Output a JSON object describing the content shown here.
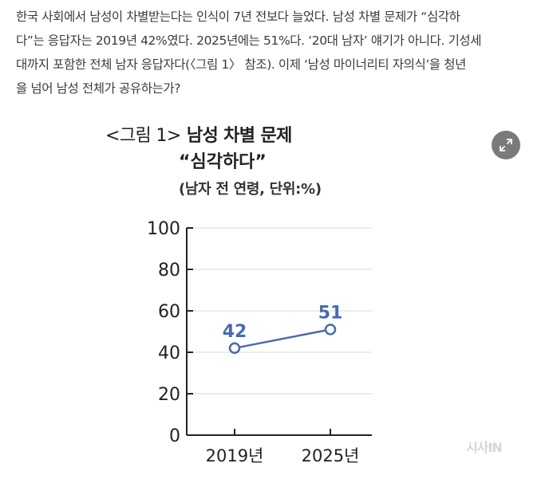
{
  "article": {
    "lines": [
      "한국 사회에서 남성이 차별받는다는 인식이 7년 전보다 늘었다. 남성 차별 문제가 “심각하",
      "다”는 응답자는 2019년 42%였다. 2025년에는 51%다. ‘20대 남자’ 얘기가 아니다. 기성세",
      "대까지 포함한 전체 남자 응답자다(〈그림 1〉 참조). 이제 ‘남성 마이너리티 자의식’을 청년",
      "을 넘어 남성 전체가 공유하는가?"
    ]
  },
  "figure": {
    "label": "<그림 1>",
    "title_line1": "남성 차별 문제",
    "title_line2": "“심각하다”",
    "subtitle": "(남자 전 연령, 단위:%)",
    "expand_icon": "expand-icon"
  },
  "watermark": "시사IN",
  "colors": {
    "series": "#4a6aad",
    "axis": "#222222",
    "grid": "#d9d9d9",
    "expand_button": "#7a7a7a"
  },
  "chart_data": {
    "type": "line",
    "title": "남성 차별 문제 “심각하다”",
    "subtitle": "(남자 전 연령, 단위:%)",
    "categories": [
      "2019년",
      "2025년"
    ],
    "series": [
      {
        "values": [
          42,
          51
        ]
      }
    ],
    "data_labels": [
      "42",
      "51"
    ],
    "y_ticks": [
      "0",
      "20",
      "40",
      "60",
      "80",
      "100"
    ],
    "ylim": [
      0,
      100
    ],
    "grid": true,
    "legend": "none"
  }
}
